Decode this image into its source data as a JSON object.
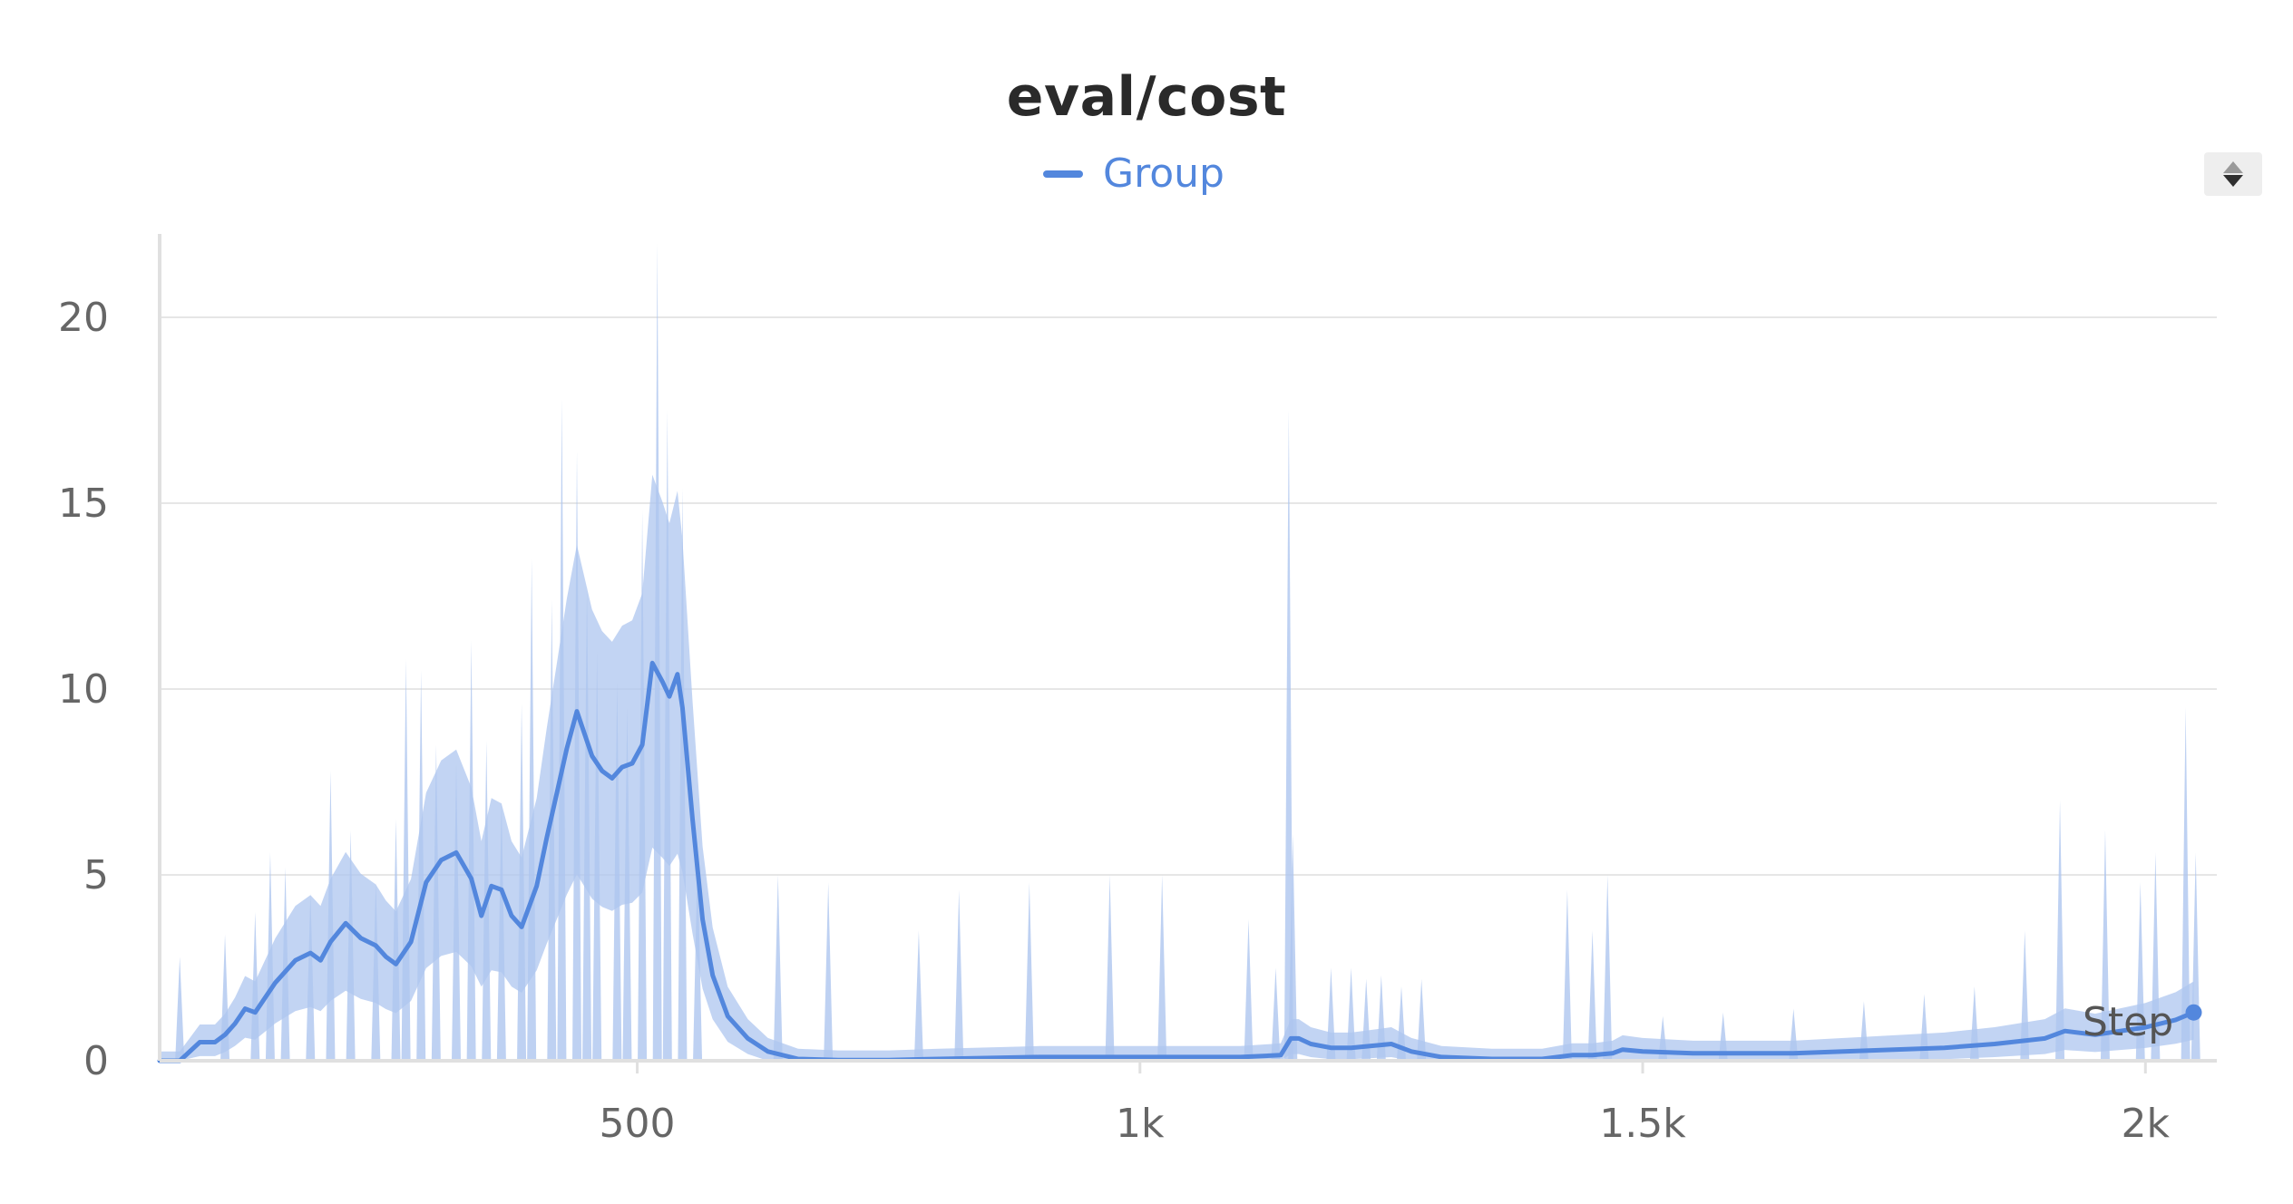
{
  "chart_data": {
    "type": "line",
    "title": "eval/cost",
    "xlabel": "Step",
    "ylabel": "",
    "xlim": [
      0,
      2060
    ],
    "ylim": [
      0,
      22
    ],
    "grid": true,
    "legend_position": "top-center",
    "x_ticks": [
      500,
      1000,
      1500,
      2000
    ],
    "x_tick_labels": [
      "500",
      "1k",
      "1.5k",
      "2k"
    ],
    "y_ticks": [
      0,
      5,
      10,
      15,
      20
    ],
    "y_tick_labels": [
      "0",
      "5",
      "10",
      "15",
      "20"
    ],
    "colors": {
      "series": "#5387dd",
      "band": "#aec6ef",
      "grid": "#e6e6e6",
      "axis": "#e0e0e0"
    },
    "series": [
      {
        "name": "Group",
        "x": [
          25,
          45,
          65,
          80,
          90,
          100,
          110,
          120,
          140,
          160,
          175,
          185,
          195,
          210,
          225,
          240,
          250,
          260,
          275,
          290,
          305,
          320,
          335,
          345,
          355,
          365,
          375,
          385,
          400,
          410,
          420,
          430,
          440,
          455,
          465,
          475,
          485,
          495,
          505,
          515,
          525,
          532,
          540,
          545,
          555,
          565,
          575,
          590,
          610,
          630,
          660,
          700,
          750,
          800,
          900,
          1000,
          1050,
          1100,
          1140,
          1150,
          1158,
          1170,
          1190,
          1210,
          1230,
          1250,
          1270,
          1300,
          1350,
          1400,
          1430,
          1450,
          1470,
          1480,
          1500,
          1550,
          1600,
          1650,
          1700,
          1750,
          1800,
          1850,
          1900,
          1920,
          1950,
          2000,
          2030,
          2048
        ],
        "y": [
          0,
          0,
          0.5,
          0.5,
          0.7,
          1.0,
          1.4,
          1.3,
          2.1,
          2.7,
          2.9,
          2.7,
          3.2,
          3.7,
          3.3,
          3.1,
          2.8,
          2.6,
          3.2,
          4.8,
          5.4,
          5.6,
          4.9,
          3.9,
          4.7,
          4.6,
          3.9,
          3.6,
          4.7,
          6.0,
          7.2,
          8.4,
          9.4,
          8.2,
          7.8,
          7.6,
          7.9,
          8.0,
          8.5,
          10.7,
          10.2,
          9.8,
          10.4,
          9.5,
          6.5,
          3.8,
          2.3,
          1.2,
          0.6,
          0.25,
          0.05,
          0.02,
          0.02,
          0.05,
          0.1,
          0.1,
          0.1,
          0.1,
          0.15,
          0.6,
          0.6,
          0.45,
          0.35,
          0.35,
          0.4,
          0.45,
          0.25,
          0.1,
          0.05,
          0.05,
          0.15,
          0.15,
          0.2,
          0.3,
          0.25,
          0.2,
          0.2,
          0.2,
          0.25,
          0.3,
          0.35,
          0.45,
          0.6,
          0.8,
          0.7,
          0.9,
          1.1,
          1.3
        ]
      }
    ],
    "spikes": [
      {
        "x": 45,
        "y": 2.8
      },
      {
        "x": 90,
        "y": 3.4
      },
      {
        "x": 120,
        "y": 4.0
      },
      {
        "x": 135,
        "y": 5.6
      },
      {
        "x": 150,
        "y": 5.2
      },
      {
        "x": 175,
        "y": 4.5
      },
      {
        "x": 195,
        "y": 7.8
      },
      {
        "x": 215,
        "y": 6.2
      },
      {
        "x": 240,
        "y": 4.8
      },
      {
        "x": 260,
        "y": 6.5
      },
      {
        "x": 270,
        "y": 10.8
      },
      {
        "x": 285,
        "y": 10.5
      },
      {
        "x": 300,
        "y": 8.5
      },
      {
        "x": 320,
        "y": 8.0
      },
      {
        "x": 335,
        "y": 11.3
      },
      {
        "x": 350,
        "y": 8.6
      },
      {
        "x": 365,
        "y": 7.0
      },
      {
        "x": 385,
        "y": 9.6
      },
      {
        "x": 395,
        "y": 13.5
      },
      {
        "x": 415,
        "y": 12.4
      },
      {
        "x": 425,
        "y": 17.8
      },
      {
        "x": 440,
        "y": 16.4
      },
      {
        "x": 450,
        "y": 12.8
      },
      {
        "x": 460,
        "y": 11.0
      },
      {
        "x": 480,
        "y": 10.2
      },
      {
        "x": 490,
        "y": 9.5
      },
      {
        "x": 505,
        "y": 14.8
      },
      {
        "x": 520,
        "y": 22.0
      },
      {
        "x": 530,
        "y": 17.5
      },
      {
        "x": 545,
        "y": 15.4
      },
      {
        "x": 560,
        "y": 5.5
      },
      {
        "x": 640,
        "y": 5.0
      },
      {
        "x": 690,
        "y": 4.8
      },
      {
        "x": 780,
        "y": 3.5
      },
      {
        "x": 820,
        "y": 4.6
      },
      {
        "x": 890,
        "y": 4.8
      },
      {
        "x": 970,
        "y": 5.0
      },
      {
        "x": 1022,
        "y": 5.0
      },
      {
        "x": 1108,
        "y": 3.8
      },
      {
        "x": 1135,
        "y": 2.5
      },
      {
        "x": 1148,
        "y": 17.5
      },
      {
        "x": 1152,
        "y": 6.1
      },
      {
        "x": 1190,
        "y": 2.5
      },
      {
        "x": 1210,
        "y": 2.5
      },
      {
        "x": 1225,
        "y": 2.2
      },
      {
        "x": 1240,
        "y": 2.3
      },
      {
        "x": 1260,
        "y": 2.0
      },
      {
        "x": 1280,
        "y": 2.2
      },
      {
        "x": 1425,
        "y": 4.6
      },
      {
        "x": 1450,
        "y": 3.5
      },
      {
        "x": 1465,
        "y": 5.0
      },
      {
        "x": 1520,
        "y": 1.2
      },
      {
        "x": 1580,
        "y": 1.3
      },
      {
        "x": 1650,
        "y": 1.4
      },
      {
        "x": 1720,
        "y": 1.6
      },
      {
        "x": 1780,
        "y": 1.8
      },
      {
        "x": 1830,
        "y": 2.0
      },
      {
        "x": 1880,
        "y": 3.5
      },
      {
        "x": 1915,
        "y": 7.0
      },
      {
        "x": 1960,
        "y": 6.2
      },
      {
        "x": 1995,
        "y": 4.8
      },
      {
        "x": 2010,
        "y": 5.6
      },
      {
        "x": 2040,
        "y": 9.5
      },
      {
        "x": 2050,
        "y": 5.6
      }
    ],
    "end_marker": {
      "x": 2048,
      "y": 1.3
    }
  }
}
